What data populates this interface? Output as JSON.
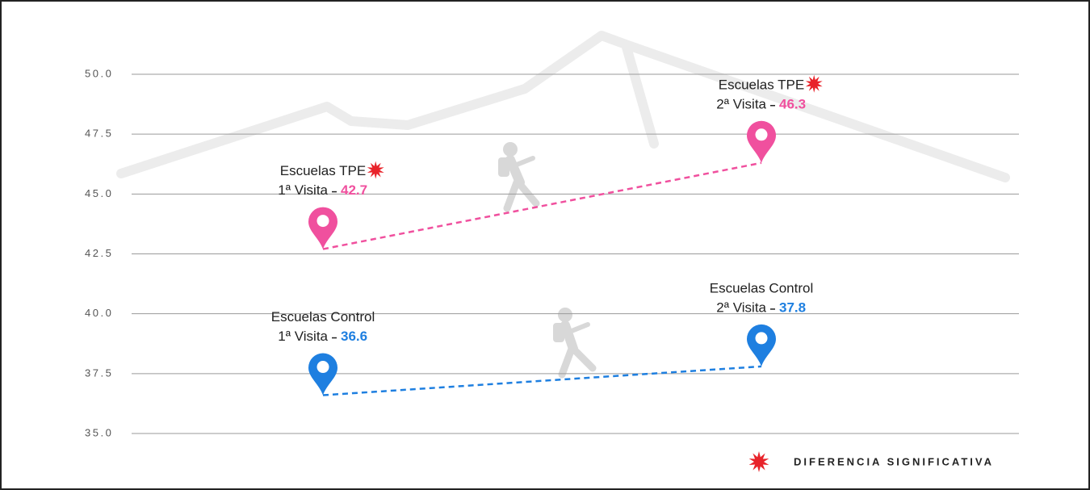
{
  "chart_data": {
    "type": "line",
    "categories": [
      "1ª Visita",
      "2ª Visita"
    ],
    "series": [
      {
        "name": "Escuelas TPE",
        "color": "#f0509e",
        "values": [
          42.7,
          46.3
        ],
        "significant": [
          true,
          true
        ]
      },
      {
        "name": "Escuelas Control",
        "color": "#1e7fe0",
        "values": [
          36.6,
          37.8
        ],
        "significant": [
          false,
          false
        ]
      }
    ],
    "ylim": [
      35,
      50
    ],
    "yticks": [
      {
        "value": 35,
        "label": "35.0"
      },
      {
        "value": 37.5,
        "label": "37.5"
      },
      {
        "value": 40,
        "label": "40.0"
      },
      {
        "value": 42.5,
        "label": "42.5"
      },
      {
        "value": 45,
        "label": "45.0"
      },
      {
        "value": 47.5,
        "label": "47.5"
      },
      {
        "value": 50,
        "label": "50.0"
      }
    ],
    "grid": true,
    "legend": {
      "label": "DIFERENCIA SIGNIFICATIVA",
      "color": "#e8232a"
    }
  }
}
